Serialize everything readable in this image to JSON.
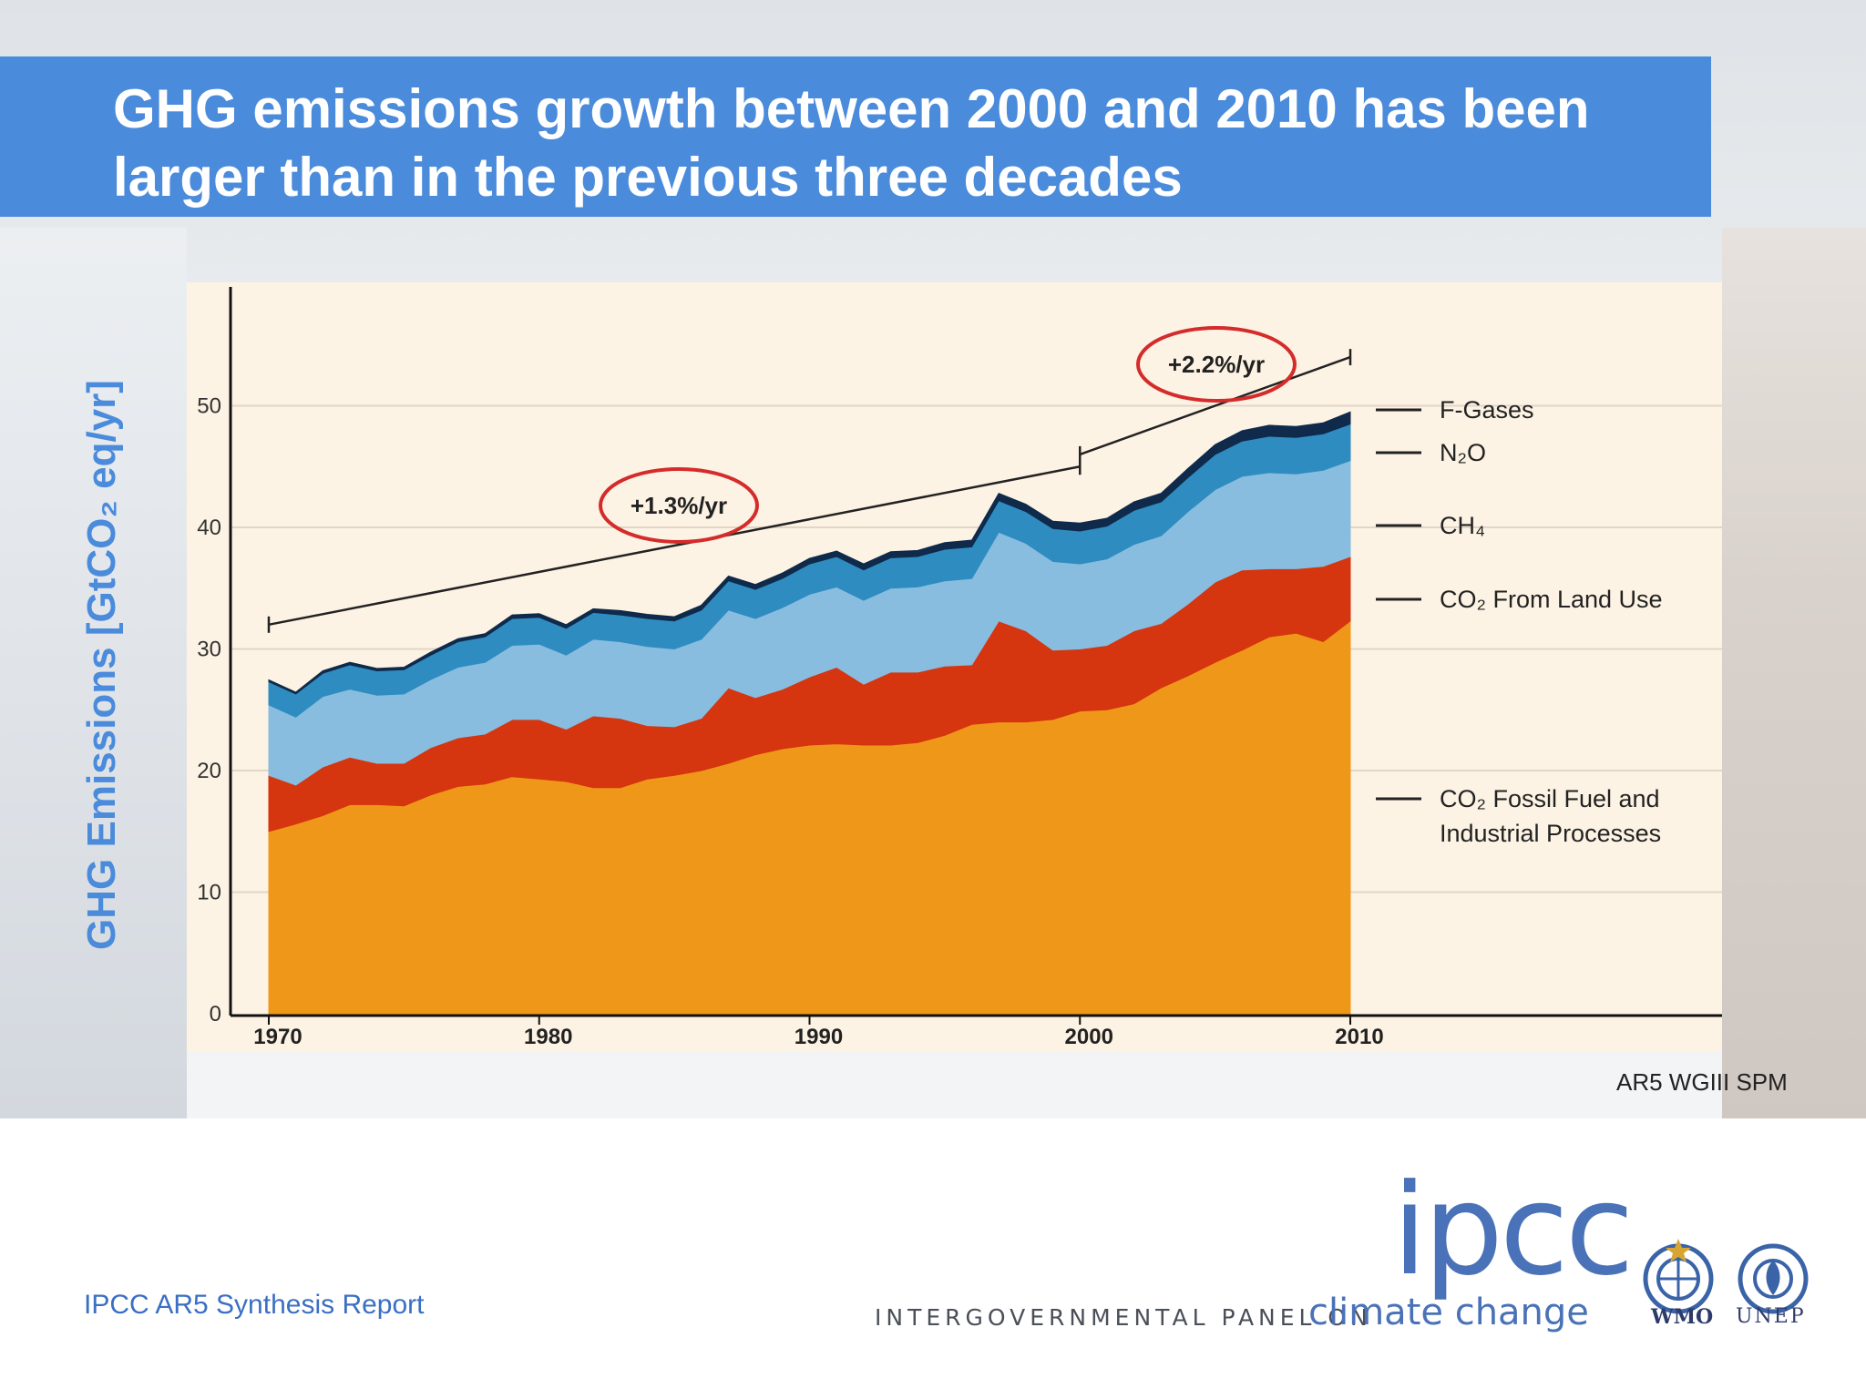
{
  "slide": {
    "title": "GHG emissions growth between 2000 and 2010 has been larger than in the previous three decades",
    "y_axis_label": "GHG Emissions [GtCO₂ eq/yr]",
    "source": "AR5 WGIII SPM",
    "footer": "IPCC AR5 Synthesis Report",
    "colors": {
      "title_band": "#4a8bdb",
      "ylabel": "#4a8bdb",
      "footer": "#3b6fc4"
    }
  },
  "logo": {
    "ipcc": "ipcc",
    "line1": "INTERGOVERNMENTAL PANEL ON",
    "line2": "climate change",
    "wmo": "WMO",
    "unep": "UNEP"
  },
  "chart_data": {
    "type": "area",
    "stacked": true,
    "x": [
      1970,
      1971,
      1972,
      1973,
      1974,
      1975,
      1976,
      1977,
      1978,
      1979,
      1980,
      1981,
      1982,
      1983,
      1984,
      1985,
      1986,
      1987,
      1988,
      1989,
      1990,
      1991,
      1992,
      1993,
      1994,
      1995,
      1996,
      1997,
      1998,
      1999,
      2000,
      2001,
      2002,
      2003,
      2004,
      2005,
      2006,
      2007,
      2008,
      2009,
      2010
    ],
    "xticks": [
      "1970",
      "1980",
      "1990",
      "2000",
      "2010"
    ],
    "yticks": [
      "0",
      "10",
      "20",
      "30",
      "40",
      "50"
    ],
    "ylim": [
      0,
      60
    ],
    "grid": true,
    "series": [
      {
        "name": "CO₂ Fossil Fuel and Industrial Processes",
        "color": "#ef9719",
        "values": [
          15.0,
          15.6,
          16.3,
          17.2,
          17.2,
          17.1,
          18.0,
          18.7,
          18.9,
          19.5,
          19.3,
          19.1,
          18.6,
          18.6,
          19.3,
          19.6,
          20.0,
          20.6,
          21.3,
          21.8,
          22.1,
          22.2,
          22.1,
          22.1,
          22.3,
          22.9,
          23.8,
          24.0,
          24.0,
          24.2,
          24.9,
          25.0,
          25.5,
          26.8,
          27.8,
          28.9,
          29.9,
          31.0,
          31.3,
          30.6,
          32.3
        ]
      },
      {
        "name": "CO₂ From Land Use",
        "color": "#d5350f",
        "values": [
          4.6,
          3.2,
          4.0,
          3.9,
          3.4,
          3.5,
          3.9,
          4.0,
          4.1,
          4.7,
          4.9,
          4.3,
          5.9,
          5.7,
          4.4,
          4.0,
          4.3,
          6.2,
          4.7,
          4.9,
          5.6,
          6.3,
          5.0,
          6.0,
          5.8,
          5.7,
          4.9,
          8.3,
          7.5,
          5.7,
          5.1,
          5.3,
          6.0,
          5.3,
          5.9,
          6.6,
          6.6,
          5.6,
          5.3,
          6.2,
          5.3
        ]
      },
      {
        "name": "CH₄",
        "color": "#88bde0",
        "values": [
          5.8,
          5.6,
          5.8,
          5.6,
          5.6,
          5.7,
          5.6,
          5.8,
          5.9,
          6.1,
          6.2,
          6.1,
          6.3,
          6.3,
          6.5,
          6.4,
          6.5,
          6.4,
          6.5,
          6.7,
          6.8,
          6.6,
          6.9,
          6.9,
          7.0,
          7.0,
          7.1,
          7.3,
          7.2,
          7.3,
          7.0,
          7.1,
          7.1,
          7.2,
          7.6,
          7.6,
          7.7,
          7.9,
          7.8,
          7.9,
          7.9
        ]
      },
      {
        "name": "N₂O",
        "color": "#2f8cc0",
        "values": [
          1.9,
          1.9,
          1.9,
          2.0,
          2.0,
          2.0,
          2.0,
          2.1,
          2.1,
          2.2,
          2.2,
          2.2,
          2.2,
          2.2,
          2.3,
          2.3,
          2.4,
          2.4,
          2.4,
          2.4,
          2.5,
          2.5,
          2.5,
          2.5,
          2.5,
          2.6,
          2.6,
          2.6,
          2.6,
          2.7,
          2.7,
          2.7,
          2.8,
          2.8,
          2.8,
          2.9,
          2.9,
          3.0,
          3.0,
          3.0,
          3.0
        ]
      },
      {
        "name": "F-Gases",
        "color": "#0f2a4a",
        "values": [
          0.15,
          0.15,
          0.2,
          0.2,
          0.2,
          0.2,
          0.25,
          0.25,
          0.25,
          0.3,
          0.3,
          0.3,
          0.3,
          0.35,
          0.35,
          0.35,
          0.4,
          0.4,
          0.4,
          0.45,
          0.45,
          0.45,
          0.5,
          0.5,
          0.5,
          0.55,
          0.55,
          0.6,
          0.6,
          0.6,
          0.65,
          0.65,
          0.7,
          0.7,
          0.75,
          0.8,
          0.85,
          0.9,
          0.9,
          0.9,
          1.0
        ]
      }
    ],
    "trend_lines": [
      {
        "label": "+1.3%/yr",
        "x": [
          1970,
          2000
        ],
        "y": [
          32,
          45
        ]
      },
      {
        "label": "+2.2%/yr",
        "x": [
          2000,
          2010
        ],
        "y": [
          46,
          54
        ]
      }
    ],
    "legend_order": [
      "F-Gases",
      "N₂O",
      "CH₄",
      "CO₂ From Land Use",
      "CO₂ Fossil Fuel and Industrial Processes"
    ]
  }
}
